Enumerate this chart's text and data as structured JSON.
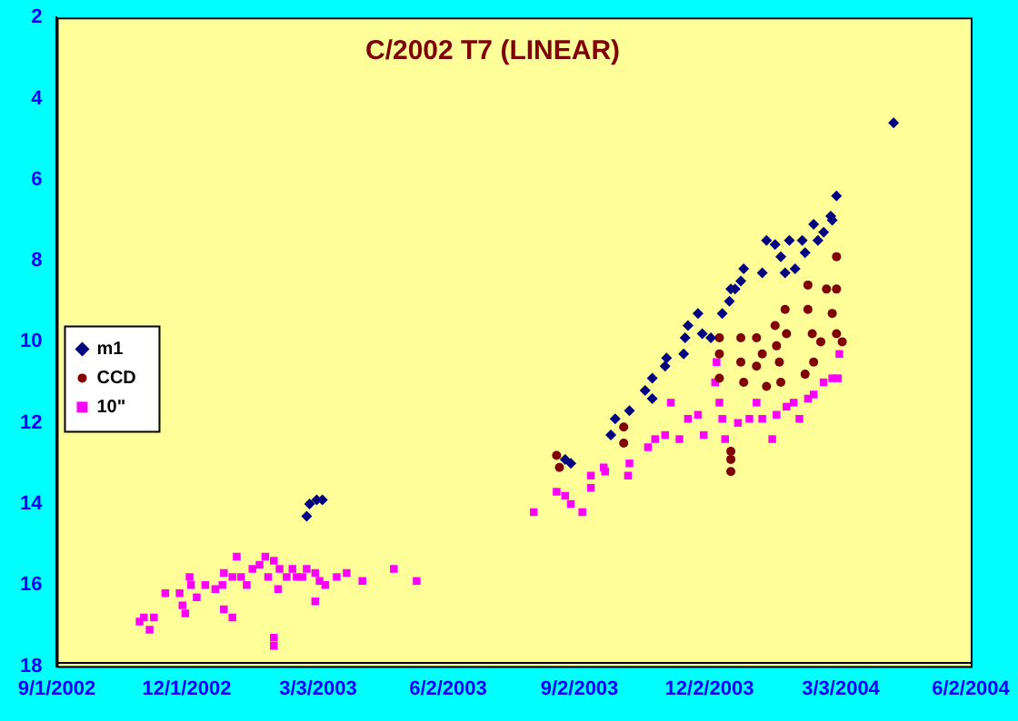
{
  "chart_data": {
    "type": "scatter",
    "title": "C/2002 T7 (LINEAR)",
    "xlim": [
      "2002-09-01",
      "2004-06-02"
    ],
    "xticks": [
      {
        "value": "2002-09-01",
        "label": "9/1/2002"
      },
      {
        "value": "2002-12-01",
        "label": "12/1/2002"
      },
      {
        "value": "2003-03-03",
        "label": "3/3/2003"
      },
      {
        "value": "2003-06-02",
        "label": "6/2/2003"
      },
      {
        "value": "2003-09-02",
        "label": "9/2/2003"
      },
      {
        "value": "2003-12-02",
        "label": "12/2/2003"
      },
      {
        "value": "2004-03-03",
        "label": "3/3/2004"
      },
      {
        "value": "2004-06-02",
        "label": "6/2/2004"
      }
    ],
    "ylim": [
      18,
      2
    ],
    "yticks": [
      2,
      4,
      6,
      8,
      10,
      12,
      14,
      16,
      18
    ],
    "grid": false,
    "legend": "left",
    "series": [
      {
        "name": "m1",
        "color": "#000080",
        "marker": "diamond",
        "x": [
          "2003-02-23",
          "2003-02-25",
          "2003-03-02",
          "2003-03-06",
          "2003-08-23",
          "2003-08-27",
          "2003-09-24",
          "2003-09-27",
          "2003-10-07",
          "2003-10-18",
          "2003-10-23",
          "2003-10-23",
          "2003-11-01",
          "2003-11-02",
          "2003-11-14",
          "2003-11-15",
          "2003-11-17",
          "2003-11-24",
          "2003-11-27",
          "2003-12-03",
          "2003-12-11",
          "2003-12-16",
          "2003-12-17",
          "2003-12-20",
          "2003-12-24",
          "2003-12-26",
          "2004-01-08",
          "2004-01-11",
          "2004-01-17",
          "2004-01-21",
          "2004-01-24",
          "2004-01-27",
          "2004-01-31",
          "2004-02-05",
          "2004-02-07",
          "2004-02-13",
          "2004-02-16",
          "2004-02-20",
          "2004-02-25",
          "2004-02-26",
          "2004-02-29",
          "2004-04-09"
        ],
        "values": [
          14.3,
          14.0,
          13.9,
          13.9,
          12.9,
          13.0,
          12.3,
          11.9,
          11.7,
          11.2,
          11.4,
          10.9,
          10.6,
          10.4,
          10.3,
          9.9,
          9.6,
          9.3,
          9.8,
          9.9,
          9.3,
          9.0,
          8.7,
          8.7,
          8.5,
          8.2,
          8.3,
          7.5,
          7.6,
          7.9,
          8.3,
          7.5,
          8.2,
          7.5,
          7.8,
          7.1,
          7.5,
          7.3,
          6.9,
          7.0,
          6.4,
          4.6
        ]
      },
      {
        "name": "CCD",
        "color": "#800000",
        "marker": "circle",
        "x": [
          "2003-08-17",
          "2003-08-19",
          "2003-10-03",
          "2003-10-03",
          "2003-12-09",
          "2003-12-09",
          "2003-12-09",
          "2003-12-17",
          "2003-12-17",
          "2003-12-17",
          "2003-12-24",
          "2003-12-24",
          "2003-12-26",
          "2004-01-04",
          "2004-01-04",
          "2004-01-08",
          "2004-01-11",
          "2004-01-17",
          "2004-01-18",
          "2004-01-20",
          "2004-01-21",
          "2004-01-24",
          "2004-01-25",
          "2004-02-07",
          "2004-02-09",
          "2004-02-12",
          "2004-02-13",
          "2004-02-18",
          "2004-02-22",
          "2004-02-26",
          "2004-02-29",
          "2004-02-29",
          "2004-03-04",
          "2004-02-29",
          "2004-02-09"
        ],
        "values": [
          12.8,
          13.1,
          12.1,
          12.5,
          10.3,
          9.9,
          10.9,
          12.7,
          12.9,
          13.2,
          9.9,
          10.5,
          11.0,
          9.9,
          10.6,
          10.3,
          11.1,
          9.6,
          10.1,
          10.5,
          11.0,
          9.2,
          9.8,
          10.8,
          9.2,
          9.8,
          10.5,
          10.0,
          8.7,
          9.3,
          8.7,
          9.8,
          10.0,
          7.9,
          8.6
        ]
      },
      {
        "name": "10\"",
        "color": "#ff00ff",
        "marker": "square",
        "x": [
          "2002-10-29",
          "2002-11-01",
          "2002-11-05",
          "2002-11-08",
          "2002-11-16",
          "2002-11-26",
          "2002-11-28",
          "2002-11-30",
          "2002-12-03",
          "2002-12-04",
          "2002-12-08",
          "2002-12-14",
          "2002-12-21",
          "2002-12-26",
          "2002-12-27",
          "2002-12-27",
          "2003-01-02",
          "2003-01-02",
          "2003-01-05",
          "2003-01-08",
          "2003-01-12",
          "2003-01-16",
          "2003-01-21",
          "2003-01-25",
          "2003-01-27",
          "2003-01-31",
          "2003-01-31",
          "2003-01-31",
          "2003-02-03",
          "2003-02-04",
          "2003-02-09",
          "2003-02-13",
          "2003-02-16",
          "2003-02-20",
          "2003-02-23",
          "2003-03-01",
          "2003-03-01",
          "2003-03-04",
          "2003-03-08",
          "2003-03-16",
          "2003-03-23",
          "2003-04-03",
          "2003-04-25",
          "2003-05-11",
          "2003-08-01",
          "2003-08-17",
          "2003-08-23",
          "2003-08-27",
          "2003-09-04",
          "2003-09-10",
          "2003-09-10",
          "2003-09-19",
          "2003-09-20",
          "2003-10-06",
          "2003-10-07",
          "2003-10-20",
          "2003-10-25",
          "2003-11-01",
          "2003-11-05",
          "2003-11-11",
          "2003-11-17",
          "2003-11-24",
          "2003-11-28",
          "2003-12-06",
          "2003-12-07",
          "2003-12-09",
          "2003-12-11",
          "2003-12-13",
          "2003-12-22",
          "2003-12-30",
          "2004-01-04",
          "2004-01-08",
          "2004-01-15",
          "2004-01-18",
          "2004-01-25",
          "2004-01-30",
          "2004-02-03",
          "2004-02-09",
          "2004-02-13",
          "2004-02-20",
          "2004-02-26",
          "2004-03-02",
          "2004-03-01"
        ],
        "values": [
          16.9,
          16.8,
          17.1,
          16.8,
          16.2,
          16.2,
          16.5,
          16.7,
          15.8,
          16.0,
          16.3,
          16.0,
          16.1,
          16.0,
          16.6,
          15.7,
          16.8,
          15.8,
          15.3,
          15.8,
          16.0,
          15.6,
          15.5,
          15.3,
          15.8,
          15.4,
          17.3,
          17.5,
          16.1,
          15.6,
          15.8,
          15.6,
          15.8,
          15.8,
          15.6,
          15.7,
          16.4,
          15.9,
          16.0,
          15.8,
          15.7,
          15.9,
          15.6,
          15.9,
          14.2,
          13.7,
          13.8,
          14.0,
          14.2,
          13.6,
          13.3,
          13.1,
          13.2,
          13.3,
          13.0,
          12.6,
          12.4,
          12.3,
          11.5,
          12.4,
          11.9,
          11.8,
          12.3,
          11.0,
          10.5,
          11.5,
          11.9,
          12.4,
          12.0,
          11.9,
          11.5,
          11.9,
          12.4,
          11.8,
          11.6,
          11.5,
          11.9,
          11.4,
          11.3,
          11.0,
          10.9,
          10.3,
          10.9
        ]
      }
    ]
  }
}
